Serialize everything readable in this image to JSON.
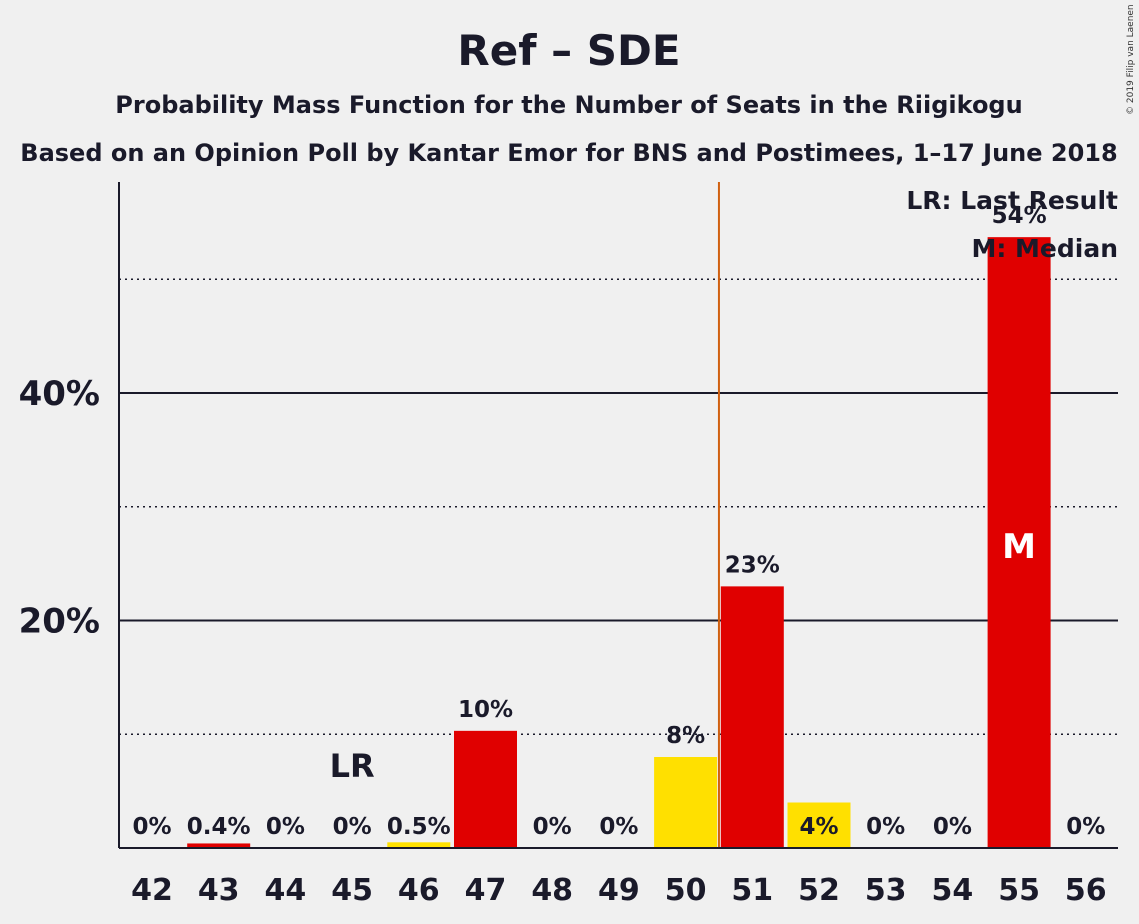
{
  "chart_data": {
    "type": "bar",
    "title": "Ref – SDE",
    "subtitle": "Probability Mass Function for the Number of Seats in the Riigikogu",
    "subtitle2": "Based on an Opinion Poll by Kantar Emor for BNS and Postimees, 1–17 June 2018",
    "copyright": "© 2019 Filip van Laenen",
    "categories": [
      "42",
      "43",
      "44",
      "45",
      "46",
      "47",
      "48",
      "49",
      "50",
      "51",
      "52",
      "53",
      "54",
      "55",
      "56"
    ],
    "series": [
      {
        "values": [
          0,
          0.4,
          0,
          0,
          0.5,
          10.3,
          0,
          0,
          8,
          23,
          4,
          0,
          0,
          53.7,
          0
        ],
        "labels": [
          "0%",
          "0.4%",
          "0%",
          "0%",
          "0.5%",
          "10%",
          "0%",
          "0%",
          "8%",
          "23%",
          "4%",
          "0%",
          "0%",
          "54%",
          "0%"
        ],
        "colors": [
          "#e00000",
          "#e00000",
          "#e00000",
          "#e00000",
          "#ffe000",
          "#e00000",
          "#e00000",
          "#e00000",
          "#ffe000",
          "#e00000",
          "#ffe000",
          "#e00000",
          "#e00000",
          "#e00000",
          "#e00000"
        ]
      }
    ],
    "yticks": [
      {
        "value": 20,
        "label": "20%"
      },
      {
        "value": 40,
        "label": "40%"
      }
    ],
    "minor_gridlines": [
      10,
      30,
      50
    ],
    "ylim": [
      0,
      58
    ],
    "last_result": {
      "seat": "45",
      "marker": "LR"
    },
    "median": {
      "seat": "55",
      "marker": "M"
    },
    "majority_line_between": [
      "50",
      "51"
    ],
    "legend": [
      "LR: Last Result",
      "M: Median"
    ],
    "legend_position": "top-right",
    "colors": {
      "red": "#e00000",
      "yellow": "#ffe000",
      "majority_line": "#d06010",
      "axis": "#1a1a2a",
      "background": "#f0f0f0"
    }
  }
}
